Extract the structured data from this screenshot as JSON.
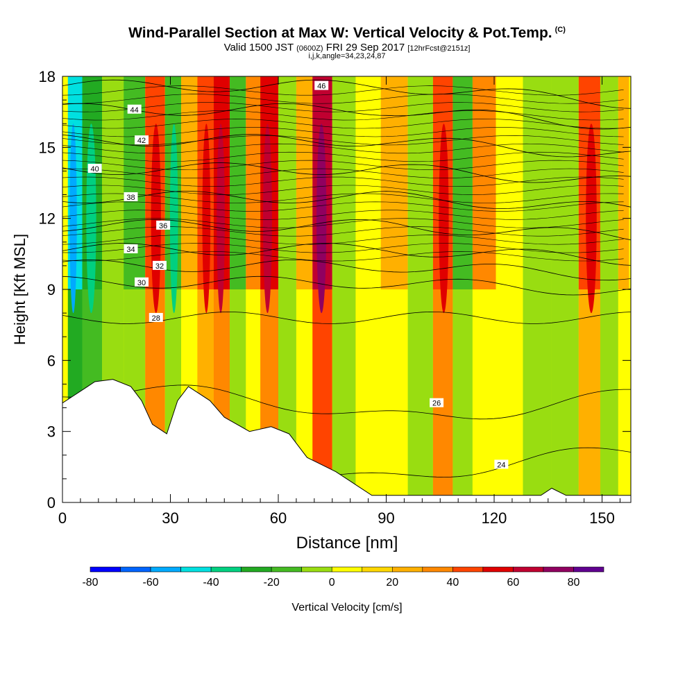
{
  "title": {
    "main": "Wind-Parallel Section at Max W: Vertical Velocity & Pot.Temp.",
    "copyright": "(C)",
    "valid_prefix": "Valid 1500 JST",
    "valid_zulu": "(0600Z)",
    "valid_date": "FRI 29 Sep 2017",
    "forecast": "[12hrFcst@2151z]",
    "indices": "i,j,k,angle=34,23,24,87"
  },
  "chart_data": {
    "type": "heatmap",
    "xlabel": "Distance [nm]",
    "ylabel": "Height [Kft MSL]",
    "xlim": [
      0,
      158
    ],
    "ylim": [
      0,
      18
    ],
    "x_ticks": [
      "0",
      "30",
      "60",
      "90",
      "120",
      "150"
    ],
    "y_ticks": [
      "0",
      "3",
      "6",
      "9",
      "12",
      "15",
      "18"
    ],
    "vertical_velocity_bands": [
      {
        "x": 3,
        "w": -55
      },
      {
        "x": 8,
        "w": -35
      },
      {
        "x": 14,
        "w": -18
      },
      {
        "x": 20,
        "w": -25
      },
      {
        "x": 26,
        "w": 35
      },
      {
        "x": 31,
        "w": -30
      },
      {
        "x": 35,
        "w": 10
      },
      {
        "x": 40,
        "w": 30
      },
      {
        "x": 44,
        "w": 45
      },
      {
        "x": 49,
        "w": -22
      },
      {
        "x": 53,
        "w": 20
      },
      {
        "x": 57,
        "w": 40
      },
      {
        "x": 63,
        "w": -15
      },
      {
        "x": 67,
        "w": 15
      },
      {
        "x": 72,
        "w": 50
      },
      {
        "x": 78,
        "w": -20
      },
      {
        "x": 85,
        "w": 5
      },
      {
        "x": 92,
        "w": 12
      },
      {
        "x": 100,
        "w": -18
      },
      {
        "x": 106,
        "w": 35
      },
      {
        "x": 111,
        "w": -28
      },
      {
        "x": 117,
        "w": 20
      },
      {
        "x": 124,
        "w": 8
      },
      {
        "x": 132,
        "w": -5
      },
      {
        "x": 140,
        "w": -15
      },
      {
        "x": 147,
        "w": 30
      },
      {
        "x": 152,
        "w": -18
      },
      {
        "x": 157,
        "w": 10
      }
    ],
    "theta_contours": [
      {
        "label": "46",
        "height": 17.6
      },
      {
        "label": "44",
        "height": 16.6
      },
      {
        "label": "42",
        "height": 15.3
      },
      {
        "label": "40",
        "height": 14.1
      },
      {
        "label": "38",
        "height": 12.9
      },
      {
        "label": "36",
        "height": 11.7
      },
      {
        "label": "34",
        "height": 10.7
      },
      {
        "label": "32",
        "height": 10.0
      },
      {
        "label": "30",
        "height": 9.3
      },
      {
        "label": "28",
        "height": 7.8
      },
      {
        "label": "26",
        "height": 4.2
      },
      {
        "label": "24",
        "height": 1.6
      }
    ],
    "terrain": [
      [
        0,
        4.2
      ],
      [
        3,
        4.5
      ],
      [
        6,
        4.8
      ],
      [
        9,
        5.1
      ],
      [
        14,
        5.2
      ],
      [
        19,
        4.9
      ],
      [
        22,
        4.3
      ],
      [
        25,
        3.3
      ],
      [
        29,
        2.9
      ],
      [
        32,
        4.3
      ],
      [
        35,
        4.9
      ],
      [
        41,
        4.3
      ],
      [
        45,
        3.6
      ],
      [
        52,
        3.0
      ],
      [
        58,
        3.2
      ],
      [
        63,
        2.9
      ],
      [
        68,
        1.9
      ],
      [
        72,
        1.6
      ],
      [
        76,
        1.3
      ],
      [
        80,
        0.9
      ],
      [
        86,
        0.3
      ],
      [
        90,
        0.3
      ],
      [
        133,
        0.3
      ],
      [
        136,
        0.6
      ],
      [
        140,
        0.3
      ],
      [
        158,
        0.3
      ]
    ]
  },
  "colorbar": {
    "label": "Vertical Velocity [cm/s]",
    "ticks": [
      "-80",
      "-60",
      "-40",
      "-20",
      "0",
      "20",
      "40",
      "60",
      "80"
    ],
    "colors": [
      "#0000ff",
      "#0064ff",
      "#00aaff",
      "#00e0e0",
      "#00d080",
      "#22aa22",
      "#44bb22",
      "#99dd11",
      "#ffff00",
      "#ffd700",
      "#ffb000",
      "#ff8800",
      "#ff4400",
      "#e00000",
      "#c00030",
      "#900060",
      "#600090"
    ]
  }
}
